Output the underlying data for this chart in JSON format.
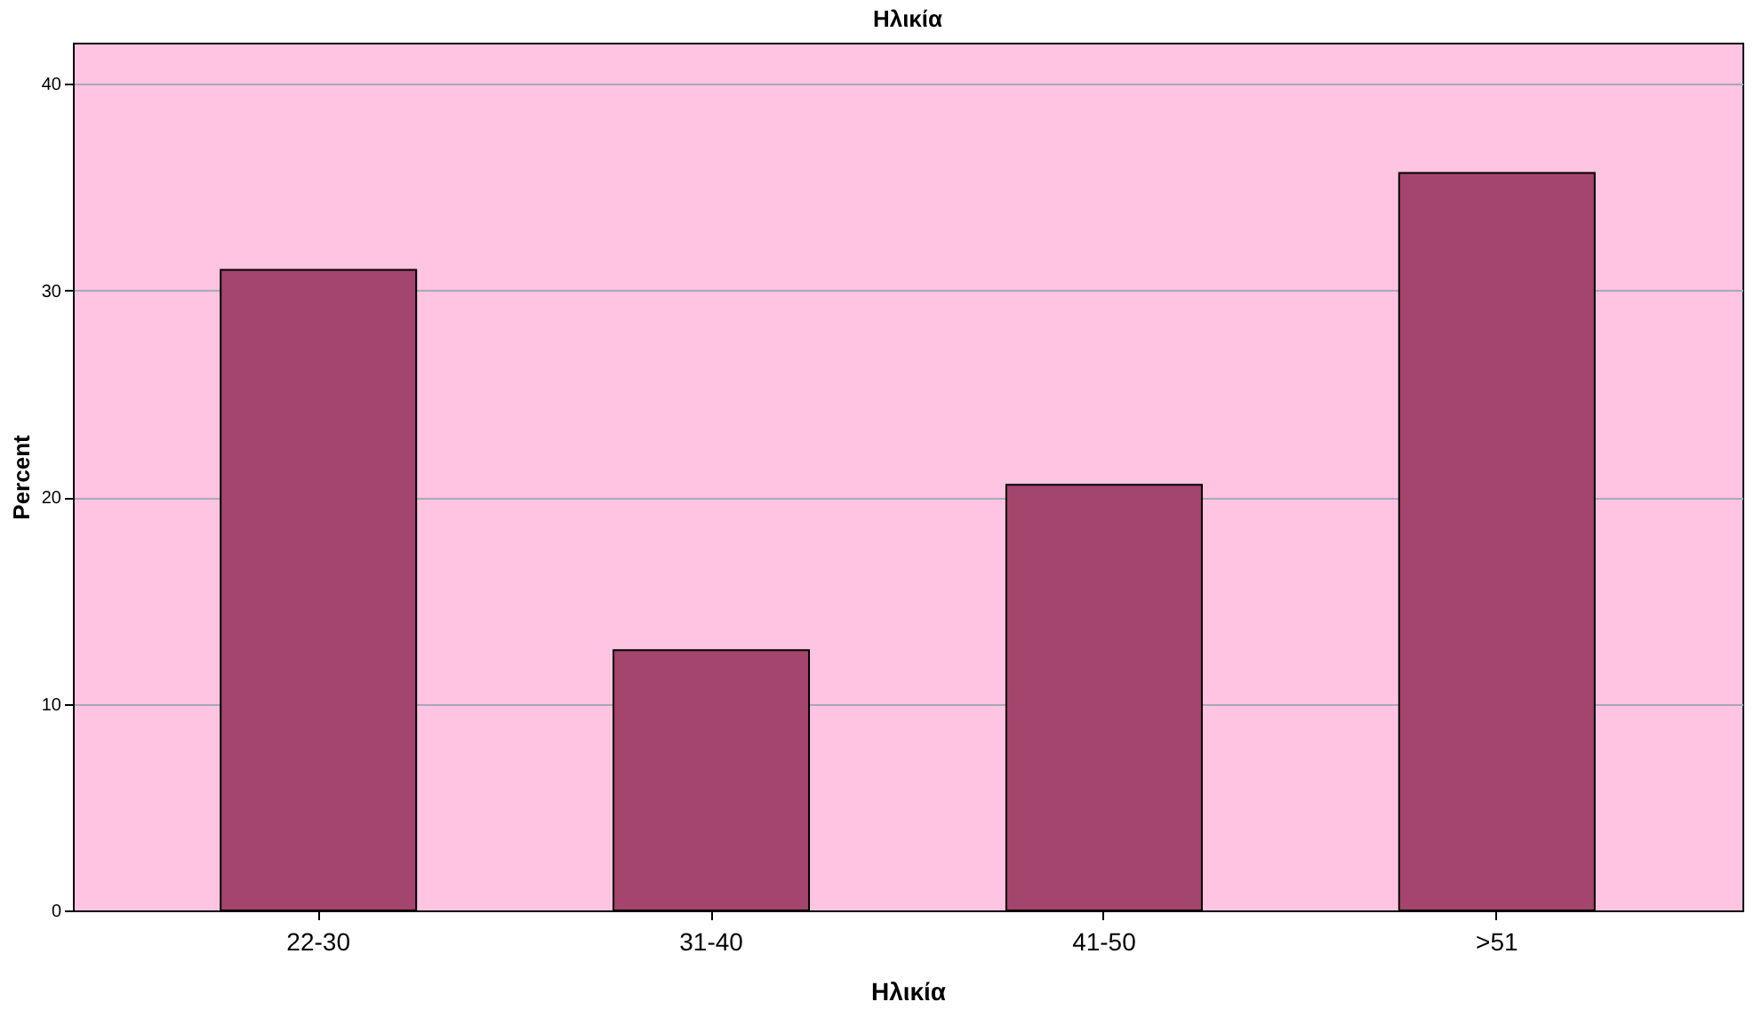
{
  "chart_data": {
    "type": "bar",
    "title": "Ηλικία",
    "xlabel": "Ηλικία",
    "ylabel": "Percent",
    "categories": [
      "22-30",
      "31-40",
      "41-50",
      ">51"
    ],
    "values": [
      31.0,
      12.6,
      20.6,
      35.7
    ],
    "color": "#a3456c",
    "ylim": [
      0,
      42
    ],
    "yticks": [
      0,
      10,
      20,
      30,
      40
    ],
    "grid": "y"
  }
}
